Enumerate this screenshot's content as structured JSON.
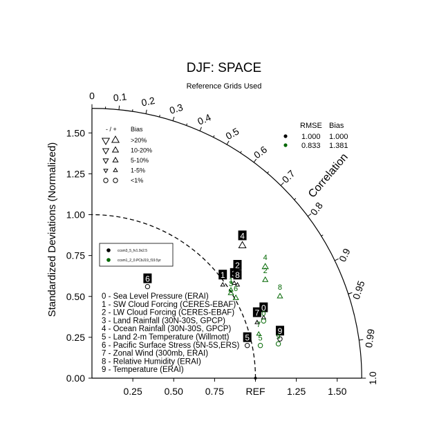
{
  "title": "DJF: SPACE",
  "subtitle": "Reference Grids Used",
  "chart_data": {
    "type": "scatter",
    "plot_kind": "taylor-diagram",
    "ylabel": "Standardized Deviations (Normalized)",
    "arc_label": "Correlation",
    "ref_label": "REF",
    "ylim": [
      0,
      1.65
    ],
    "x_ticks": [
      "0.25",
      "0.50",
      "0.75",
      "REF",
      "1.25",
      "1.50"
    ],
    "x_tick_values": [
      0.25,
      0.5,
      0.75,
      1.0,
      1.25,
      1.5
    ],
    "y_ticks": [
      "0.00",
      "0.25",
      "0.50",
      "0.75",
      "1.00",
      "1.25",
      "1.50"
    ],
    "y_tick_values": [
      0,
      0.25,
      0.5,
      0.75,
      1.0,
      1.25,
      1.5
    ],
    "corr_ticks": [
      {
        "label": "0",
        "value": 0
      },
      {
        "label": "0.1",
        "value": 0.1
      },
      {
        "label": "0.2",
        "value": 0.2
      },
      {
        "label": "0.3",
        "value": 0.3
      },
      {
        "label": "0.4",
        "value": 0.4
      },
      {
        "label": "0.5",
        "value": 0.5
      },
      {
        "label": "0.6",
        "value": 0.6
      },
      {
        "label": "0.7",
        "value": 0.7
      },
      {
        "label": "0.8",
        "value": 0.8
      },
      {
        "label": "0.9",
        "value": 0.9
      },
      {
        "label": "0.95",
        "value": 0.95
      },
      {
        "label": "0.99",
        "value": 0.99
      },
      {
        "label": "1.0",
        "value": 1.0
      }
    ],
    "series": [
      {
        "name": "ccsm3_5_fv1.9x2.5",
        "color": "#000000",
        "rmse": "1.000",
        "bias": "1.000",
        "points": [
          {
            "label": "0",
            "x": 1.05,
            "y": 0.37,
            "size": 2
          },
          {
            "label": "1",
            "x": 0.8,
            "y": 0.57,
            "size": 2
          },
          {
            "label": "2",
            "x": 0.89,
            "y": 0.63,
            "size": 2
          },
          {
            "label": "3",
            "x": 0.87,
            "y": 0.58,
            "size": 2
          },
          {
            "label": "4",
            "x": 0.92,
            "y": 0.81,
            "size": 5
          },
          {
            "label": "5",
            "x": 0.95,
            "y": 0.2,
            "size": 0
          },
          {
            "label": "6",
            "x": 0.34,
            "y": 0.56,
            "size": 0
          },
          {
            "label": "7",
            "x": 1.01,
            "y": 0.34,
            "size": 2
          },
          {
            "label": "8",
            "x": 0.89,
            "y": 0.57,
            "size": 2
          },
          {
            "label": "9",
            "x": 1.15,
            "y": 0.24,
            "size": 0
          }
        ]
      },
      {
        "name": "ccsm1_2_0.PCbJ19_f19.5yr",
        "color": "#006600",
        "rmse": "0.833",
        "bias": "1.381",
        "points": [
          {
            "label": "0",
            "x": 1.05,
            "y": 0.35,
            "size": 0
          },
          {
            "label": "1",
            "x": 0.85,
            "y": 0.54,
            "size": 2
          },
          {
            "label": "2",
            "x": 1.06,
            "y": 0.6,
            "size": 3
          },
          {
            "label": "3",
            "x": 0.85,
            "y": 0.52,
            "size": 3
          },
          {
            "label": "4",
            "x": 1.06,
            "y": 0.68,
            "size": 4
          },
          {
            "label": "5",
            "x": 1.03,
            "y": 0.2,
            "size": 0
          },
          {
            "label": "6",
            "x": 0.88,
            "y": 0.49,
            "size": 3
          },
          {
            "label": "7",
            "x": 1.02,
            "y": 0.27,
            "size": 2
          },
          {
            "label": "8",
            "x": 1.15,
            "y": 0.5,
            "size": 3
          },
          {
            "label": "9",
            "x": 1.14,
            "y": 0.21,
            "size": 0
          }
        ]
      }
    ],
    "stats_header": {
      "rmse": "RMSE",
      "bias": "Bias"
    },
    "bias_legend": {
      "header_sign": "- / +",
      "header_bias": "Bias",
      "rows": [
        ">20%",
        "10-20%",
        "5-10%",
        "1-5%",
        "<1%"
      ]
    },
    "case_list": [
      "0 - Sea Level Pressure (ERAI)",
      "1 - SW Cloud Forcing (CERES-EBAF)",
      "2 - LW Cloud Forcing (CERES-EBAF)",
      "3 - Land Rainfall (30N-30S, GPCP)",
      "4 - Ocean Rainfall (30N-30S, GPCP)",
      "5 - Land 2-m Temperature (Willmott)",
      "6 - Pacific Surface Stress (5N-5S,ERS)",
      "7 - Zonal Wind (300mb, ERAI)",
      "8 - Relative Humidity (ERAI)",
      "9 - Temperature (ERAI)"
    ]
  }
}
